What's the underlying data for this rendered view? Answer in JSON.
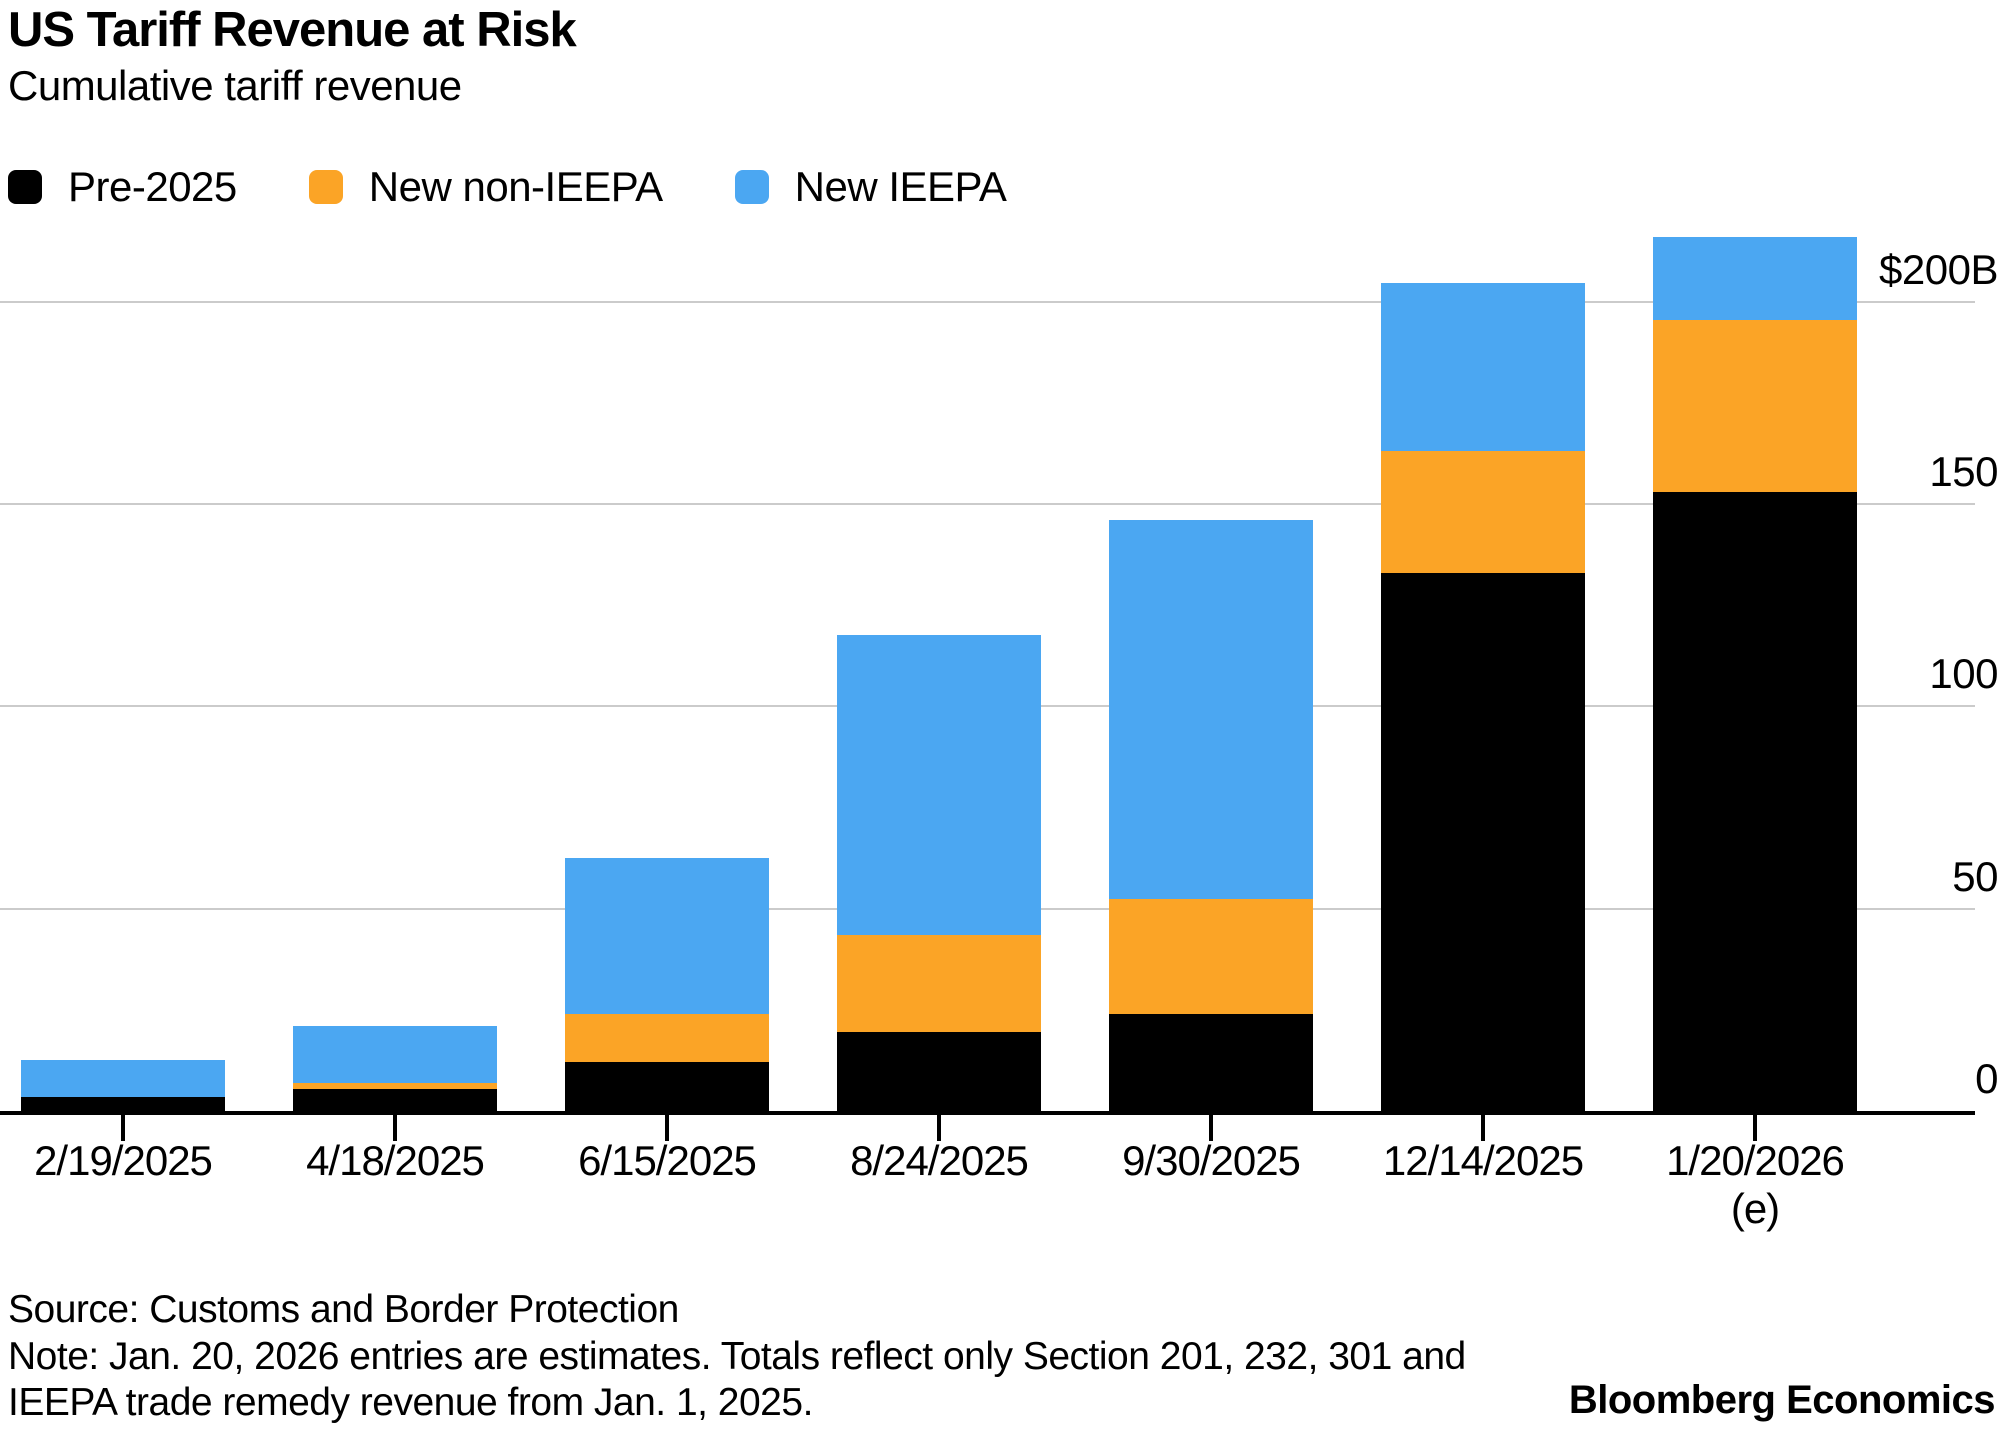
{
  "header": {
    "title": "US Tariff Revenue at Risk",
    "subtitle": "Cumulative tariff revenue"
  },
  "legend": [
    {
      "label": "Pre-2025",
      "color": "#000000"
    },
    {
      "label": "New non-IEEPA",
      "color": "#FBA426"
    },
    {
      "label": "New IEEPA",
      "color": "#4BA7F2"
    }
  ],
  "chart_data": {
    "type": "bar",
    "stacked": true,
    "title": "US Tariff Revenue at Risk",
    "subtitle": "Cumulative tariff revenue",
    "categories": [
      "2/19/2025",
      "4/18/2025",
      "6/15/2025",
      "8/24/2025",
      "9/30/2025",
      "12/14/2025",
      "1/20/2026"
    ],
    "category_sublabels": [
      "",
      "",
      "",
      "",
      "",
      "",
      "(e)"
    ],
    "series": [
      {
        "name": "Pre-2025",
        "color": "#000000",
        "values": [
          3.5,
          5.5,
          12,
          19.5,
          24,
          133,
          153
        ]
      },
      {
        "name": "New non-IEEPA",
        "color": "#FBA426",
        "values": [
          0,
          1.5,
          12,
          24,
          28.5,
          30,
          42.5
        ]
      },
      {
        "name": "New IEEPA",
        "color": "#4BA7F2",
        "values": [
          9,
          14,
          38.5,
          74,
          93.5,
          41.5,
          20.5
        ]
      }
    ],
    "totals": [
      12.5,
      21,
      62.5,
      117.5,
      146,
      204.5,
      216
    ],
    "xlabel": "",
    "ylabel": "",
    "y_axis": {
      "side": "right",
      "ticks": [
        0,
        50,
        100,
        150,
        200
      ],
      "tick_labels": [
        "0",
        "50",
        "100",
        "150",
        "$200B"
      ],
      "ylim": [
        0,
        220
      ]
    },
    "grid": true,
    "gridline_color": "#cbcbcb",
    "legend_position": "top"
  },
  "footer": {
    "source": "Source: Customs and Border Protection",
    "note_lines": [
      "Note: Jan. 20, 2026 entries are estimates. Totals reflect only Section 201, 232, 301 and",
      "IEEPA trade remedy revenue from Jan. 1, 2025."
    ],
    "brand": "Bloomberg Economics"
  }
}
